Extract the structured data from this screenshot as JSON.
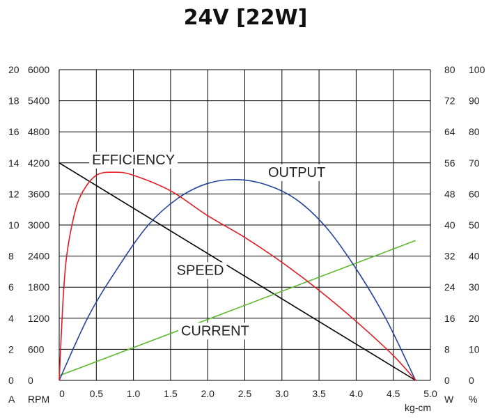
{
  "chart_data": {
    "type": "line",
    "title": "24V [22W]",
    "xlabel": "kg-cm",
    "xlim": [
      0,
      5
    ],
    "x_ticks": [
      "0",
      "0.5",
      "1.0",
      "1.5",
      "2.0",
      "2.5",
      "3.0",
      "3.5",
      "4.0",
      "4.5",
      "5.0"
    ],
    "grid": true,
    "axes": {
      "current": {
        "unit": "A",
        "range": [
          0,
          20
        ],
        "ticks": [
          "0",
          "2",
          "4",
          "6",
          "8",
          "10",
          "12",
          "14",
          "16",
          "18",
          "20"
        ]
      },
      "speed": {
        "unit": "RPM",
        "range": [
          0,
          6000
        ],
        "ticks": [
          "0",
          "600",
          "1200",
          "1800",
          "2400",
          "3000",
          "3600",
          "4200",
          "4800",
          "5400",
          "6000"
        ]
      },
      "output": {
        "unit": "W",
        "range": [
          0,
          80
        ],
        "ticks": [
          "0",
          "8",
          "16",
          "24",
          "32",
          "40",
          "48",
          "56",
          "64",
          "72",
          "80"
        ]
      },
      "efficiency": {
        "unit": "%",
        "range": [
          0,
          100
        ],
        "ticks": [
          "0",
          "10",
          "20",
          "30",
          "40",
          "50",
          "60",
          "70",
          "80",
          "90",
          "100"
        ]
      }
    },
    "series": [
      {
        "name": "SPEED",
        "axis": "speed",
        "color": "#000000",
        "x": [
          0,
          4.8
        ],
        "y": [
          4200,
          0
        ]
      },
      {
        "name": "CURRENT",
        "axis": "current",
        "color": "#5cb82c",
        "x": [
          0,
          4.8
        ],
        "y": [
          0.3,
          9.0
        ]
      },
      {
        "name": "OUTPUT",
        "axis": "output",
        "color": "#22449a",
        "x": [
          0,
          0.4,
          0.8,
          1.2,
          1.6,
          2.0,
          2.4,
          2.8,
          3.2,
          3.6,
          4.0,
          4.4,
          4.8
        ],
        "y": [
          0,
          16.7,
          29.3,
          40.0,
          46.9,
          50.7,
          51.7,
          50.3,
          46.5,
          39.3,
          28.7,
          15.9,
          0
        ]
      },
      {
        "name": "EFFICIENCY",
        "axis": "efficiency",
        "color": "#e01a22",
        "x": [
          0,
          0.05,
          0.1,
          0.2,
          0.3,
          0.5,
          0.75,
          1.0,
          1.5,
          2.0,
          2.5,
          3.0,
          3.5,
          4.0,
          4.5,
          4.8
        ],
        "y": [
          0,
          25,
          40,
          53,
          60,
          66,
          67,
          66,
          61,
          53,
          46,
          38,
          29,
          19,
          8,
          0
        ]
      }
    ],
    "annotations": [
      {
        "text": "EFFICIENCY",
        "x": 1.0,
        "y_axis": "current",
        "y": 13.9
      },
      {
        "text": "OUTPUT",
        "x": 3.2,
        "y_axis": "current",
        "y": 13.1
      },
      {
        "text": "SPEED",
        "x": 1.9,
        "y_axis": "current",
        "y": 6.8
      },
      {
        "text": "CURRENT",
        "x": 2.1,
        "y_axis": "current",
        "y": 2.9
      }
    ]
  }
}
